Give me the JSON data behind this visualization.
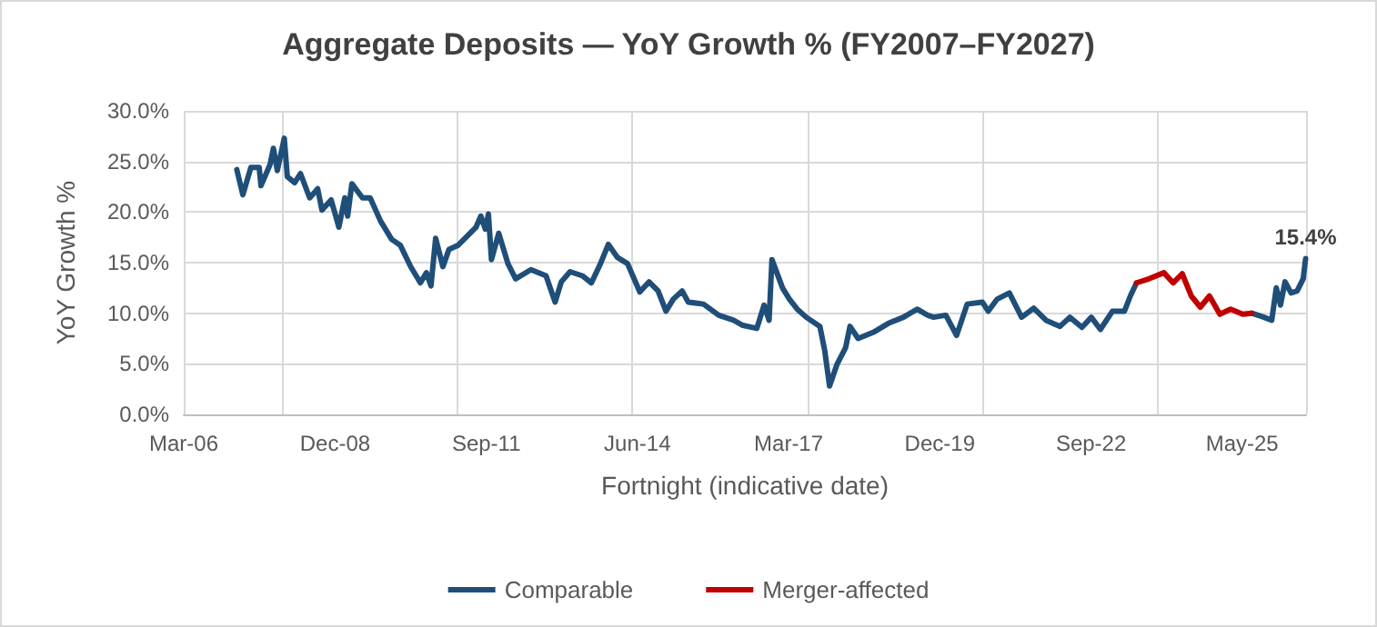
{
  "chart_data": {
    "type": "line",
    "title": "Aggregate Deposits — YoY Growth % (FY2007–FY2027)",
    "xlabel": "Fortnight (indicative date)",
    "ylabel": "YoY Growth %",
    "xlim": [
      "2006-03-31",
      "2026-07-26"
    ],
    "xticks": [
      {
        "value": "2006-03-31",
        "label": "Mar-06"
      },
      {
        "value": "2008-12-26",
        "label": "Dec-08"
      },
      {
        "value": "2011-09-22",
        "label": "Sep-11"
      },
      {
        "value": "2014-06-17",
        "label": "Jun-14"
      },
      {
        "value": "2017-03-13",
        "label": "Mar-17"
      },
      {
        "value": "2019-12-08",
        "label": "Dec-19"
      },
      {
        "value": "2022-09-03",
        "label": "Sep-22"
      },
      {
        "value": "2025-05-29",
        "label": "May-25"
      }
    ],
    "ylim": [
      0,
      30
    ],
    "yticks": [
      {
        "value": 0,
        "label": "0.0%"
      },
      {
        "value": 5,
        "label": "5.0%"
      },
      {
        "value": 10,
        "label": "10.0%"
      },
      {
        "value": 15,
        "label": "15.0%"
      },
      {
        "value": 20,
        "label": "20.0%"
      },
      {
        "value": 25,
        "label": "25.0%"
      },
      {
        "value": 30,
        "label": "30.0%"
      }
    ],
    "grid": true,
    "legend": "bottom",
    "marker": "none",
    "line_style": "solid",
    "series": [
      {
        "name": "Comparable",
        "color": "#1f4e79",
        "x": [
          "2007-03-17",
          "2007-04-26",
          "2007-06-18",
          "2007-08-12",
          "2007-08-24",
          "2007-10-23",
          "2007-11-14",
          "2007-12-10",
          "2008-01-25",
          "2008-02-14",
          "2008-04-02",
          "2008-05-11",
          "2008-07-11",
          "2008-09-02",
          "2008-09-30",
          "2008-11-30",
          "2009-01-20",
          "2009-02-28",
          "2009-03-19",
          "2009-04-16",
          "2009-06-25",
          "2009-08-15",
          "2009-10-23",
          "2010-01-04",
          "2010-03-03",
          "2010-05-10",
          "2010-07-13",
          "2010-08-22",
          "2010-09-21",
          "2010-10-22",
          "2010-12-09",
          "2011-01-18",
          "2011-03-18",
          "2011-05-17",
          "2011-07-16",
          "2011-08-17",
          "2011-09-16",
          "2011-10-06",
          "2011-10-26",
          "2011-12-13",
          "2012-02-12",
          "2012-04-03",
          "2012-07-13",
          "2012-10-21",
          "2012-12-20",
          "2013-01-30",
          "2013-03-29",
          "2013-06-18",
          "2013-08-17",
          "2013-10-16",
          "2013-12-07",
          "2014-02-06",
          "2014-04-13",
          "2014-07-03",
          "2014-09-02",
          "2014-11-01",
          "2014-12-23",
          "2015-02-10",
          "2015-04-09",
          "2015-05-19",
          "2015-08-28",
          "2015-12-07",
          "2016-03-14",
          "2016-05-14",
          "2016-08-15",
          "2016-10-02",
          "2016-11-04",
          "2016-11-23",
          "2017-02-01",
          "2017-03-18",
          "2017-05-09",
          "2017-07-08",
          "2017-10-06",
          "2017-11-07",
          "2017-12-09",
          "2018-01-26",
          "2018-03-25",
          "2018-04-23",
          "2018-06-16",
          "2018-09-23",
          "2019-01-02",
          "2019-04-11",
          "2019-07-11",
          "2019-09-19",
          "2019-10-28",
          "2020-01-17",
          "2020-03-28",
          "2020-06-06",
          "2020-09-14",
          "2020-10-23",
          "2020-12-22",
          "2021-03-12",
          "2021-06-01",
          "2021-08-20",
          "2021-11-09",
          "2022-02-10",
          "2022-04-16",
          "2022-07-05",
          "2022-09-05",
          "2022-11-04",
          "2023-01-23",
          "2023-04-12",
          "2023-05-21",
          "2023-07-01",
          "2024-01-15",
          "2025-08-01",
          "2025-10-21",
          "2025-12-11",
          "2026-01-10",
          "2026-02-07",
          "2026-03-09",
          "2026-04-18",
          "2026-05-28",
          "2026-07-07",
          "2026-07-23"
        ],
        "values": [
          24.2,
          21.7,
          24.4,
          24.4,
          22.6,
          24.7,
          26.3,
          24.1,
          27.3,
          23.5,
          22.9,
          23.8,
          21.4,
          22.3,
          20.2,
          21.2,
          18.5,
          21.4,
          19.6,
          22.8,
          21.4,
          21.4,
          19.1,
          17.3,
          16.7,
          14.6,
          13.0,
          14.0,
          12.7,
          17.4,
          14.6,
          16.3,
          16.7,
          17.6,
          18.5,
          19.6,
          18.3,
          19.8,
          15.3,
          17.9,
          14.9,
          13.4,
          14.3,
          13.7,
          11.1,
          13.1,
          14.1,
          13.7,
          13.0,
          14.9,
          16.8,
          15.5,
          14.9,
          12.1,
          13.1,
          12.2,
          10.2,
          11.4,
          12.2,
          11.1,
          10.9,
          9.8,
          9.3,
          8.8,
          8.5,
          10.8,
          9.3,
          15.3,
          12.5,
          11.4,
          10.4,
          9.6,
          8.7,
          6.3,
          2.8,
          4.9,
          6.6,
          8.7,
          7.5,
          8.1,
          9.0,
          9.6,
          10.4,
          9.8,
          9.6,
          9.8,
          7.8,
          10.9,
          11.1,
          10.2,
          11.4,
          12.0,
          9.6,
          10.5,
          9.3,
          8.7,
          9.6,
          8.6,
          9.6,
          8.4,
          10.2,
          10.2,
          11.7,
          13.0,
          null,
          10.0,
          9.6,
          9.3,
          12.5,
          10.8,
          13.1,
          12.0,
          12.2,
          13.4,
          15.4
        ],
        "value_labels": [
          null,
          null,
          null,
          null,
          null,
          null,
          null,
          null,
          null,
          null,
          null,
          null,
          null,
          null,
          null,
          null,
          null,
          null,
          null,
          null,
          null,
          null,
          null,
          null,
          null,
          null,
          null,
          null,
          null,
          null,
          null,
          null,
          null,
          null,
          null,
          null,
          null,
          null,
          null,
          null,
          null,
          null,
          null,
          null,
          null,
          null,
          null,
          null,
          null,
          null,
          null,
          null,
          null,
          null,
          null,
          null,
          null,
          null,
          null,
          null,
          null,
          null,
          null,
          null,
          null,
          null,
          null,
          null,
          null,
          null,
          null,
          null,
          null,
          null,
          null,
          null,
          null,
          null,
          null,
          null,
          null,
          null,
          null,
          null,
          null,
          null,
          null,
          null,
          null,
          null,
          null,
          null,
          null,
          null,
          null,
          null,
          null,
          null,
          null,
          null,
          null,
          null,
          null,
          null,
          null,
          null,
          null,
          null,
          null,
          null,
          null,
          null,
          null,
          null,
          "15.4%"
        ]
      },
      {
        "name": "Merger-affected",
        "color": "#c00000",
        "x": [
          "2023-07-01",
          "2023-09-21",
          "2023-12-29",
          "2024-02-28",
          "2024-04-28",
          "2024-06-27",
          "2024-08-26",
          "2024-10-25",
          "2025-01-02",
          "2025-03-14",
          "2025-06-02",
          "2025-08-01"
        ],
        "values": [
          13.0,
          13.4,
          14.0,
          13.0,
          13.9,
          11.7,
          10.6,
          11.7,
          9.9,
          10.4,
          9.9,
          10.0
        ]
      }
    ]
  }
}
